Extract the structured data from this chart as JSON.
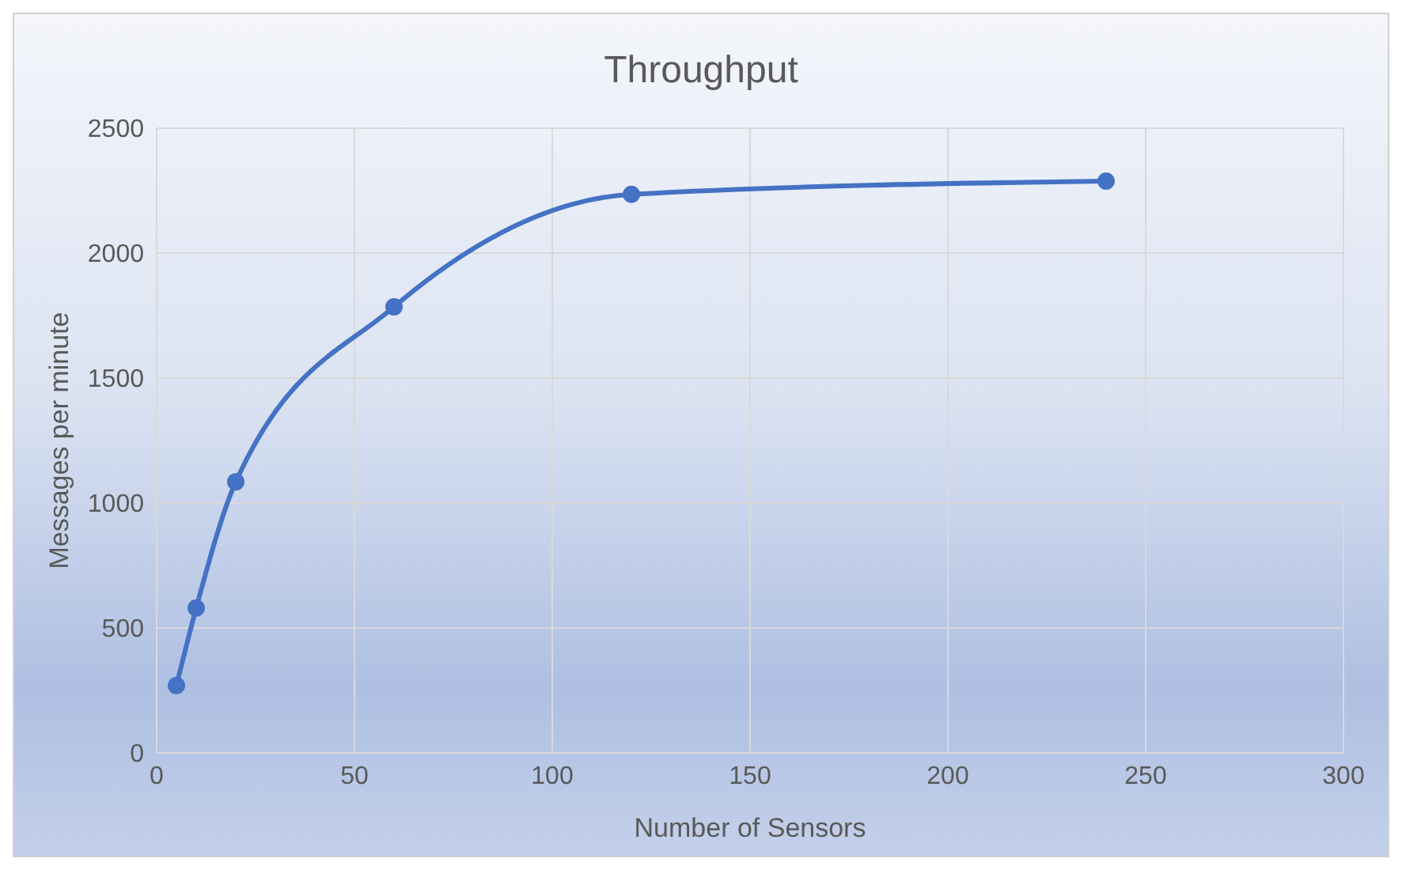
{
  "chart_data": {
    "type": "line",
    "title": "Throughput",
    "xlabel": "Number of Sensors",
    "ylabel": "Messages per minute",
    "x": [
      5,
      10,
      20,
      60,
      120,
      240
    ],
    "series": [
      {
        "color": "#4472c4",
        "values": [
          270,
          580,
          1085,
          1785,
          2235,
          2288
        ]
      }
    ],
    "xlim": [
      0,
      300
    ],
    "xticks": [
      0,
      50,
      100,
      150,
      200,
      250,
      300
    ],
    "ylim": [
      0,
      2500
    ],
    "yticks": [
      0,
      500,
      1000,
      1500,
      2000,
      2500
    ],
    "grid": true,
    "marker": "circle",
    "line_style": "solid"
  }
}
